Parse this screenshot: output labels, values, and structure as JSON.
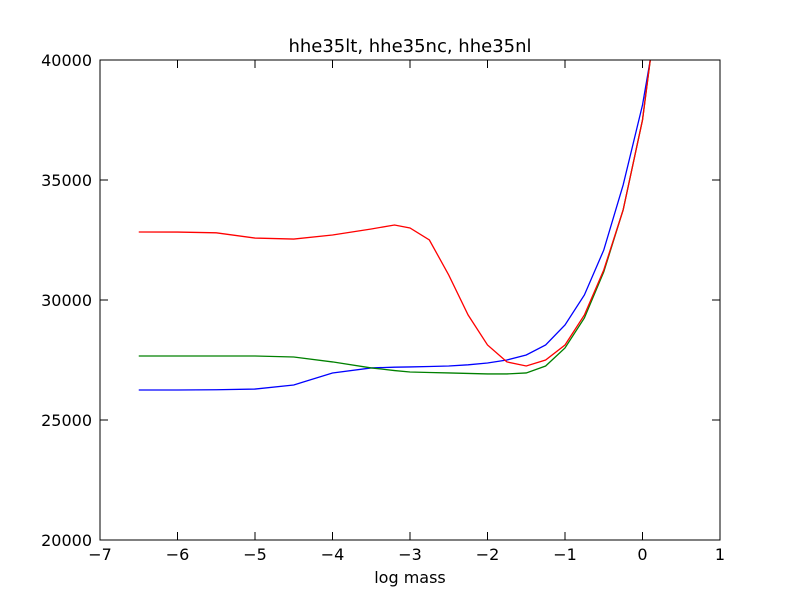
{
  "chart_data": {
    "type": "line",
    "title": "hhe35lt, hhe35nc, hhe35nl",
    "xlabel": "log mass",
    "x": [
      -6.5,
      -6,
      -5.5,
      -5,
      -4.5,
      -4,
      -3.5,
      -3.2,
      -3,
      -2.75,
      -2.5,
      -2.25,
      -2,
      -1.75,
      -1.5,
      -1.25,
      -1,
      -0.75,
      -0.5,
      -0.25,
      0,
      0.1
    ],
    "series": [
      {
        "color": "#0000ff",
        "values": [
          26250,
          26250,
          26260,
          26290,
          26460,
          26960,
          27170,
          27200,
          27210,
          27230,
          27250,
          27300,
          27375,
          27500,
          27710,
          28125,
          28960,
          30210,
          32080,
          34790,
          38125,
          40000
        ]
      },
      {
        "color": "#008000",
        "values": [
          27667,
          27667,
          27667,
          27667,
          27625,
          27420,
          27170,
          27060,
          27000,
          26980,
          26960,
          26940,
          26920,
          26920,
          26960,
          27250,
          28000,
          29250,
          31170,
          33750,
          37500,
          40000
        ]
      },
      {
        "color": "#ff0000",
        "values": [
          32833,
          32830,
          32800,
          32580,
          32540,
          32710,
          32960,
          33125,
          33000,
          32500,
          31040,
          29375,
          28125,
          27420,
          27250,
          27500,
          28125,
          29375,
          31250,
          33750,
          37500,
          40000
        ]
      }
    ],
    "xlim": [
      -7,
      1
    ],
    "xticks": [
      {
        "value": -7,
        "label": "−7"
      },
      {
        "value": -6,
        "label": "−6"
      },
      {
        "value": -5,
        "label": "−5"
      },
      {
        "value": -4,
        "label": "−4"
      },
      {
        "value": -3,
        "label": "−3"
      },
      {
        "value": -2,
        "label": "−2"
      },
      {
        "value": -1,
        "label": "−1"
      },
      0,
      1
    ],
    "ylim": [
      20000,
      40000
    ],
    "yticks": [
      20000,
      25000,
      30000,
      35000,
      40000
    ],
    "grid": false
  }
}
